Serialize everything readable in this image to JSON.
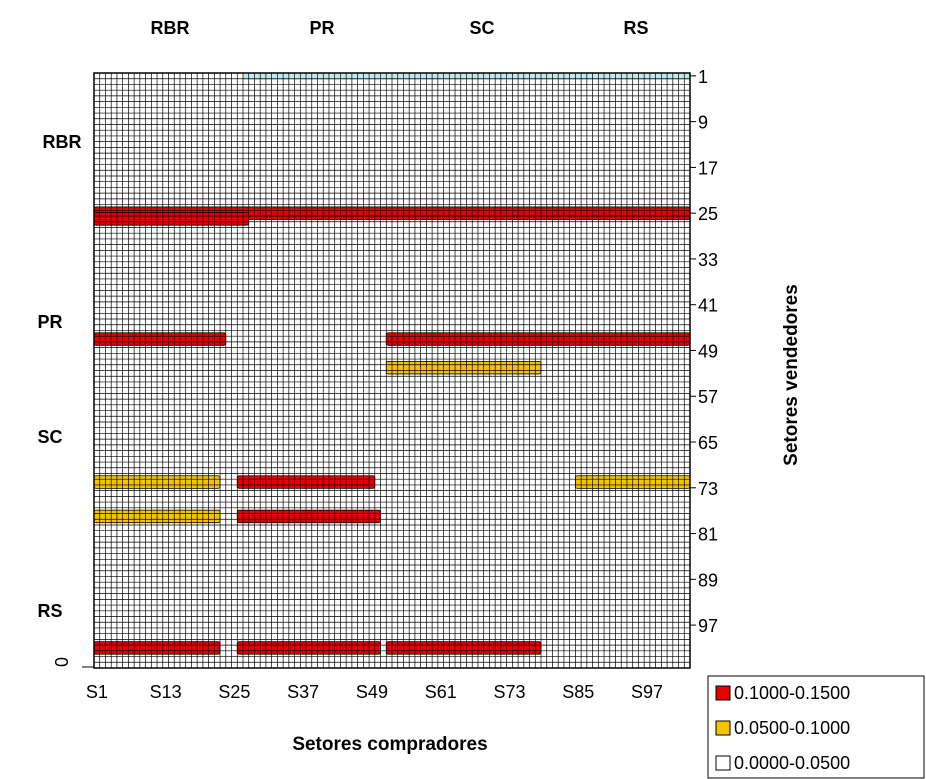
{
  "chart_data": {
    "type": "heatmap",
    "xlabel": "Setores compradores",
    "ylabel": "Setores vendedores",
    "x_tick_labels": [
      "S1",
      "S13",
      "S25",
      "S37",
      "S49",
      "S61",
      "S73",
      "S85",
      "S97"
    ],
    "y_tick_labels": [
      "1",
      "9",
      "17",
      "25",
      "33",
      "41",
      "49",
      "57",
      "65",
      "73",
      "81",
      "89",
      "97"
    ],
    "y_origin_label": "0",
    "x_region_labels": [
      "RBR",
      "PR",
      "SC",
      "RS"
    ],
    "y_region_labels": [
      "RBR",
      "PR",
      "SC",
      "RS"
    ],
    "sectors": 104,
    "legend": [
      {
        "label": "0.1000-0.1500",
        "color": "#e60000"
      },
      {
        "label": "0.0500-0.1000",
        "color": "#f5c400"
      },
      {
        "label": "0.0000-0.0500",
        "color": "#ffffff"
      }
    ],
    "colors": {
      "high": "#e60000",
      "mid": "#f5c400",
      "low": "#ffffff",
      "top_band": "#bfeaf0"
    },
    "hot_rows": [
      {
        "row": 25,
        "x_from": 1,
        "x_to": 104,
        "level": 2
      },
      {
        "row": 26,
        "x_from": 1,
        "x_to": 27,
        "level": 2
      },
      {
        "row": 47,
        "x_from": 1,
        "x_to": 23,
        "level": 2
      },
      {
        "row": 47,
        "x_from": 52,
        "x_to": 104,
        "level": 2
      },
      {
        "row": 52,
        "x_from": 52,
        "x_to": 78,
        "level": 1
      },
      {
        "row": 72,
        "x_from": 1,
        "x_to": 22,
        "level": 1
      },
      {
        "row": 72,
        "x_from": 26,
        "x_to": 49,
        "level": 2
      },
      {
        "row": 72,
        "x_from": 85,
        "x_to": 104,
        "level": 1
      },
      {
        "row": 78,
        "x_from": 1,
        "x_to": 22,
        "level": 1
      },
      {
        "row": 78,
        "x_from": 26,
        "x_to": 50,
        "level": 2
      },
      {
        "row": 101,
        "x_from": 1,
        "x_to": 22,
        "level": 2
      },
      {
        "row": 101,
        "x_from": 26,
        "x_to": 50,
        "level": 2
      },
      {
        "row": 101,
        "x_from": 52,
        "x_to": 78,
        "level": 2
      }
    ]
  }
}
